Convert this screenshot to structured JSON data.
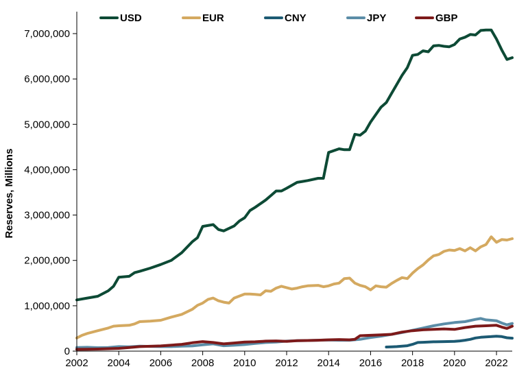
{
  "chart_data": {
    "type": "line",
    "title": "",
    "xlabel": "",
    "ylabel": "Reserves, Millions",
    "xlim": [
      2002,
      2022.75
    ],
    "ylim": [
      0,
      7000000
    ],
    "x_ticks": [
      2002,
      2004,
      2006,
      2008,
      2010,
      2012,
      2014,
      2016,
      2018,
      2020,
      2022
    ],
    "x_tick_labels": [
      "2002",
      "2004",
      "2006",
      "2008",
      "2010",
      "2012",
      "2014",
      "2016",
      "2018",
      "2020",
      "2022"
    ],
    "y_ticks": [
      0,
      1000000,
      2000000,
      3000000,
      4000000,
      5000000,
      6000000,
      7000000
    ],
    "y_tick_labels": [
      "0",
      "1,000,000",
      "2,000,000",
      "3,000,000",
      "4,000,000",
      "5,000,000",
      "6,000,000",
      "7,000,000"
    ],
    "grid": false,
    "legend_position": "top",
    "series": [
      {
        "name": "USD",
        "color": "#0d4a35",
        "points": [
          [
            2002,
            1130000
          ],
          [
            2002.5,
            1170000
          ],
          [
            2003,
            1210000
          ],
          [
            2003.5,
            1330000
          ],
          [
            2003.75,
            1430000
          ],
          [
            2004,
            1630000
          ],
          [
            2004.5,
            1650000
          ],
          [
            2004.75,
            1730000
          ],
          [
            2005,
            1760000
          ],
          [
            2005.5,
            1830000
          ],
          [
            2006,
            1910000
          ],
          [
            2006.5,
            2000000
          ],
          [
            2007,
            2170000
          ],
          [
            2007.5,
            2410000
          ],
          [
            2007.75,
            2500000
          ],
          [
            2008,
            2750000
          ],
          [
            2008.5,
            2790000
          ],
          [
            2008.75,
            2680000
          ],
          [
            2009,
            2650000
          ],
          [
            2009.5,
            2760000
          ],
          [
            2009.75,
            2870000
          ],
          [
            2010,
            2940000
          ],
          [
            2010.25,
            3100000
          ],
          [
            2010.5,
            3170000
          ],
          [
            2011,
            3330000
          ],
          [
            2011.25,
            3430000
          ],
          [
            2011.5,
            3530000
          ],
          [
            2011.75,
            3530000
          ],
          [
            2012,
            3590000
          ],
          [
            2012.5,
            3720000
          ],
          [
            2012.75,
            3740000
          ],
          [
            2013,
            3760000
          ],
          [
            2013.5,
            3810000
          ],
          [
            2013.75,
            3810000
          ],
          [
            2014,
            4380000
          ],
          [
            2014.5,
            4460000
          ],
          [
            2014.75,
            4440000
          ],
          [
            2015,
            4440000
          ],
          [
            2015.25,
            4780000
          ],
          [
            2015.5,
            4760000
          ],
          [
            2015.75,
            4850000
          ],
          [
            2016,
            5050000
          ],
          [
            2016.5,
            5380000
          ],
          [
            2016.75,
            5480000
          ],
          [
            2017,
            5680000
          ],
          [
            2017.5,
            6080000
          ],
          [
            2017.75,
            6250000
          ],
          [
            2018,
            6520000
          ],
          [
            2018.25,
            6540000
          ],
          [
            2018.5,
            6620000
          ],
          [
            2018.75,
            6600000
          ],
          [
            2019,
            6730000
          ],
          [
            2019.25,
            6740000
          ],
          [
            2019.5,
            6720000
          ],
          [
            2019.75,
            6710000
          ],
          [
            2020,
            6760000
          ],
          [
            2020.25,
            6880000
          ],
          [
            2020.5,
            6920000
          ],
          [
            2020.75,
            6980000
          ],
          [
            2021,
            6970000
          ],
          [
            2021.25,
            7070000
          ],
          [
            2021.5,
            7080000
          ],
          [
            2021.75,
            7080000
          ],
          [
            2022,
            6880000
          ],
          [
            2022.25,
            6640000
          ],
          [
            2022.5,
            6430000
          ],
          [
            2022.75,
            6470000
          ]
        ]
      },
      {
        "name": "EUR",
        "color": "#d4a960",
        "points": [
          [
            2002,
            290000
          ],
          [
            2002.25,
            350000
          ],
          [
            2002.5,
            390000
          ],
          [
            2003,
            450000
          ],
          [
            2003.5,
            510000
          ],
          [
            2003.75,
            550000
          ],
          [
            2004,
            560000
          ],
          [
            2004.5,
            570000
          ],
          [
            2004.75,
            600000
          ],
          [
            2005,
            650000
          ],
          [
            2005.5,
            660000
          ],
          [
            2006,
            680000
          ],
          [
            2006.5,
            750000
          ],
          [
            2007,
            810000
          ],
          [
            2007.5,
            920000
          ],
          [
            2007.75,
            1010000
          ],
          [
            2008,
            1060000
          ],
          [
            2008.25,
            1140000
          ],
          [
            2008.5,
            1170000
          ],
          [
            2008.75,
            1110000
          ],
          [
            2009,
            1080000
          ],
          [
            2009.25,
            1060000
          ],
          [
            2009.5,
            1170000
          ],
          [
            2010,
            1260000
          ],
          [
            2010.25,
            1260000
          ],
          [
            2010.5,
            1250000
          ],
          [
            2010.75,
            1240000
          ],
          [
            2011,
            1330000
          ],
          [
            2011.25,
            1320000
          ],
          [
            2011.5,
            1390000
          ],
          [
            2011.75,
            1430000
          ],
          [
            2012,
            1400000
          ],
          [
            2012.25,
            1370000
          ],
          [
            2012.5,
            1390000
          ],
          [
            2012.75,
            1420000
          ],
          [
            2013,
            1440000
          ],
          [
            2013.5,
            1450000
          ],
          [
            2013.75,
            1420000
          ],
          [
            2014,
            1440000
          ],
          [
            2014.25,
            1480000
          ],
          [
            2014.5,
            1500000
          ],
          [
            2014.75,
            1600000
          ],
          [
            2015,
            1610000
          ],
          [
            2015.25,
            1500000
          ],
          [
            2015.5,
            1450000
          ],
          [
            2015.75,
            1420000
          ],
          [
            2016,
            1350000
          ],
          [
            2016.25,
            1440000
          ],
          [
            2016.5,
            1420000
          ],
          [
            2016.75,
            1410000
          ],
          [
            2017,
            1490000
          ],
          [
            2017.25,
            1560000
          ],
          [
            2017.5,
            1620000
          ],
          [
            2017.75,
            1600000
          ],
          [
            2018,
            1720000
          ],
          [
            2018.25,
            1820000
          ],
          [
            2018.5,
            1900000
          ],
          [
            2018.75,
            2010000
          ],
          [
            2019,
            2100000
          ],
          [
            2019.25,
            2130000
          ],
          [
            2019.5,
            2200000
          ],
          [
            2019.75,
            2230000
          ],
          [
            2020,
            2220000
          ],
          [
            2020.25,
            2260000
          ],
          [
            2020.5,
            2210000
          ],
          [
            2020.75,
            2280000
          ],
          [
            2021,
            2210000
          ],
          [
            2021.25,
            2300000
          ],
          [
            2021.5,
            2350000
          ],
          [
            2021.75,
            2520000
          ],
          [
            2022,
            2400000
          ],
          [
            2022.25,
            2460000
          ],
          [
            2022.5,
            2450000
          ],
          [
            2022.75,
            2480000
          ]
        ]
      },
      {
        "name": "CNY",
        "color": "#1c5a73",
        "points": [
          [
            2016.75,
            90000
          ],
          [
            2017,
            95000
          ],
          [
            2017.25,
            100000
          ],
          [
            2017.5,
            110000
          ],
          [
            2017.75,
            120000
          ],
          [
            2018,
            150000
          ],
          [
            2018.25,
            190000
          ],
          [
            2018.5,
            195000
          ],
          [
            2018.75,
            200000
          ],
          [
            2019,
            205000
          ],
          [
            2019.5,
            210000
          ],
          [
            2020,
            215000
          ],
          [
            2020.25,
            225000
          ],
          [
            2020.5,
            240000
          ],
          [
            2020.75,
            260000
          ],
          [
            2021,
            290000
          ],
          [
            2021.25,
            305000
          ],
          [
            2021.5,
            315000
          ],
          [
            2021.75,
            320000
          ],
          [
            2022,
            330000
          ],
          [
            2022.25,
            320000
          ],
          [
            2022.5,
            295000
          ],
          [
            2022.75,
            285000
          ]
        ]
      },
      {
        "name": "JPY",
        "color": "#5b8da7",
        "points": [
          [
            2002,
            80000
          ],
          [
            2002.5,
            85000
          ],
          [
            2003,
            75000
          ],
          [
            2003.5,
            80000
          ],
          [
            2004,
            100000
          ],
          [
            2004.5,
            95000
          ],
          [
            2005,
            110000
          ],
          [
            2005.5,
            105000
          ],
          [
            2006,
            100000
          ],
          [
            2006.5,
            100000
          ],
          [
            2007,
            110000
          ],
          [
            2007.5,
            115000
          ],
          [
            2008,
            140000
          ],
          [
            2008.5,
            160000
          ],
          [
            2009,
            120000
          ],
          [
            2009.5,
            130000
          ],
          [
            2010,
            145000
          ],
          [
            2010.5,
            170000
          ],
          [
            2011,
            190000
          ],
          [
            2011.5,
            200000
          ],
          [
            2012,
            220000
          ],
          [
            2012.5,
            230000
          ],
          [
            2013,
            235000
          ],
          [
            2013.5,
            240000
          ],
          [
            2014,
            245000
          ],
          [
            2014.5,
            240000
          ],
          [
            2015,
            240000
          ],
          [
            2015.5,
            260000
          ],
          [
            2016,
            300000
          ],
          [
            2016.5,
            330000
          ],
          [
            2017,
            370000
          ],
          [
            2017.5,
            410000
          ],
          [
            2018,
            460000
          ],
          [
            2018.5,
            510000
          ],
          [
            2019,
            560000
          ],
          [
            2019.5,
            600000
          ],
          [
            2020,
            630000
          ],
          [
            2020.5,
            650000
          ],
          [
            2021,
            700000
          ],
          [
            2021.25,
            720000
          ],
          [
            2021.5,
            690000
          ],
          [
            2021.75,
            680000
          ],
          [
            2022,
            670000
          ],
          [
            2022.25,
            620000
          ],
          [
            2022.5,
            580000
          ],
          [
            2022.75,
            610000
          ]
        ]
      },
      {
        "name": "GBP",
        "color": "#7d1a1a",
        "points": [
          [
            2002,
            40000
          ],
          [
            2003,
            45000
          ],
          [
            2004,
            60000
          ],
          [
            2004.5,
            80000
          ],
          [
            2005,
            100000
          ],
          [
            2006,
            115000
          ],
          [
            2007,
            150000
          ],
          [
            2007.5,
            185000
          ],
          [
            2008,
            210000
          ],
          [
            2008.5,
            190000
          ],
          [
            2009,
            160000
          ],
          [
            2009.5,
            180000
          ],
          [
            2010,
            200000
          ],
          [
            2010.5,
            205000
          ],
          [
            2011,
            220000
          ],
          [
            2011.5,
            225000
          ],
          [
            2012,
            215000
          ],
          [
            2012.5,
            230000
          ],
          [
            2013,
            235000
          ],
          [
            2013.5,
            240000
          ],
          [
            2014,
            250000
          ],
          [
            2014.5,
            255000
          ],
          [
            2015,
            250000
          ],
          [
            2015.25,
            260000
          ],
          [
            2015.5,
            340000
          ],
          [
            2016,
            350000
          ],
          [
            2016.5,
            360000
          ],
          [
            2017,
            370000
          ],
          [
            2017.5,
            420000
          ],
          [
            2018,
            450000
          ],
          [
            2018.5,
            470000
          ],
          [
            2019,
            480000
          ],
          [
            2019.5,
            490000
          ],
          [
            2020,
            480000
          ],
          [
            2020.5,
            520000
          ],
          [
            2021,
            550000
          ],
          [
            2021.5,
            560000
          ],
          [
            2022,
            570000
          ],
          [
            2022.25,
            530000
          ],
          [
            2022.5,
            500000
          ],
          [
            2022.75,
            550000
          ]
        ]
      }
    ]
  }
}
